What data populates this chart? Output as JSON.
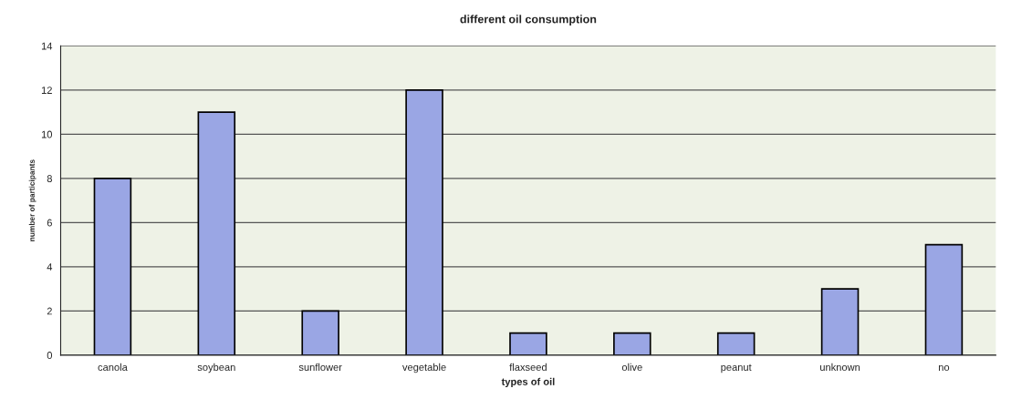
{
  "chart_data": {
    "type": "bar",
    "title": "different oil consumption",
    "xlabel": "types of oil",
    "ylabel": "number of participants",
    "categories": [
      "canola",
      "soybean",
      "sunflower",
      "vegetable",
      "flaxseed",
      "olive",
      "peanut",
      "unknown",
      "no"
    ],
    "values": [
      8,
      11,
      2,
      12,
      1,
      1,
      1,
      3,
      5
    ],
    "color": "#9aa6e4",
    "ylim": [
      0,
      14
    ],
    "yticks": [
      0,
      2,
      4,
      6,
      8,
      10,
      12,
      14
    ],
    "grid": "y"
  }
}
